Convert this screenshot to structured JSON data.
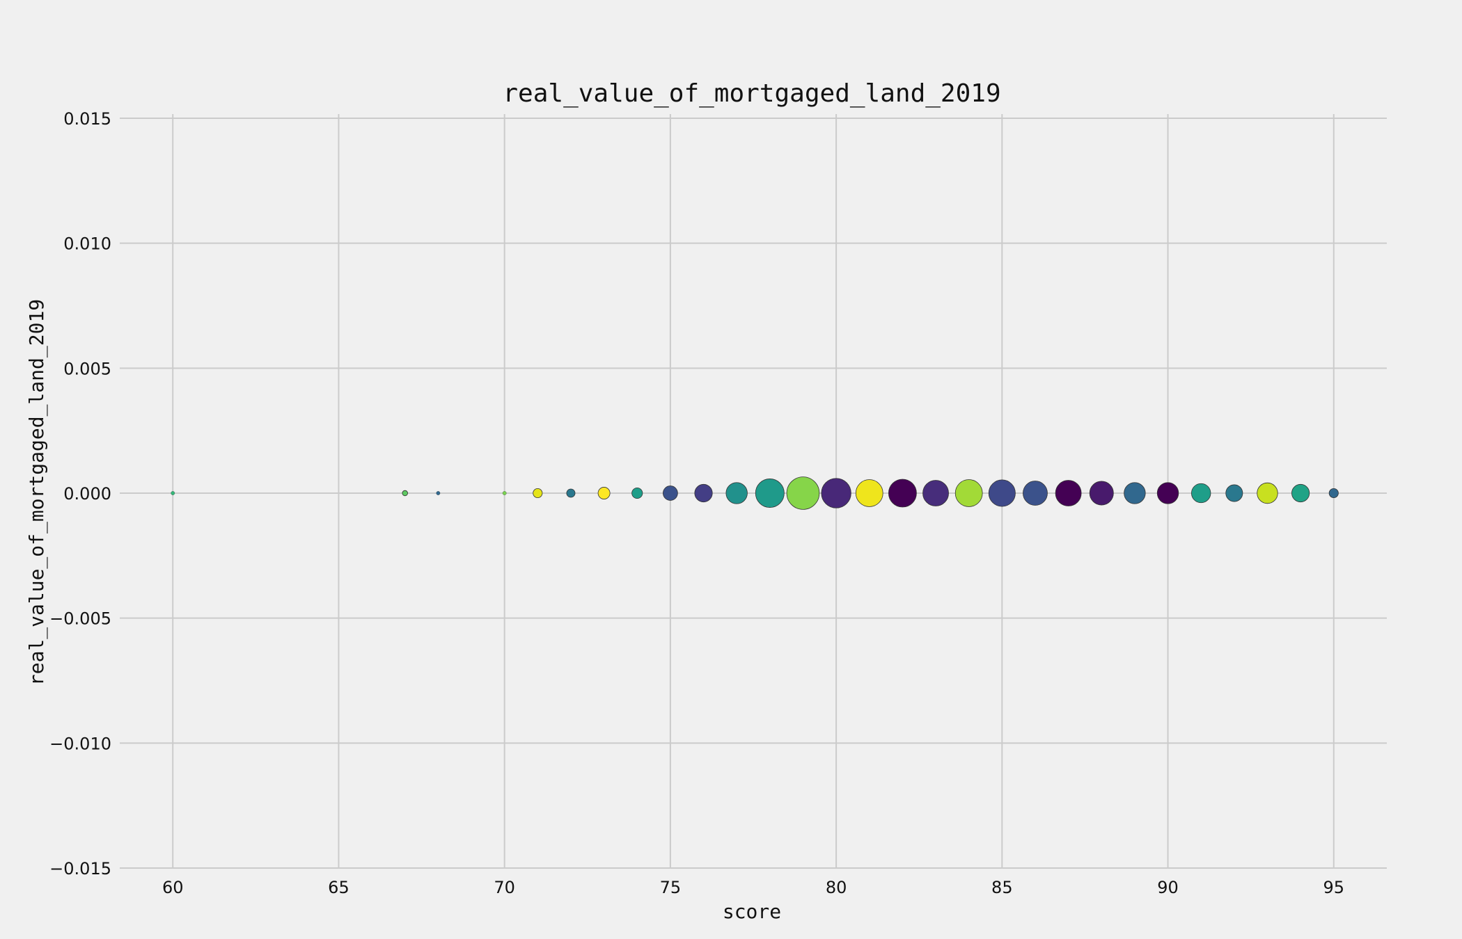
{
  "chart_data": {
    "type": "scatter",
    "title": "real_value_of_mortgaged_land_2019",
    "xlabel": "score",
    "ylabel": "real_value_of_mortgaged_land_2019",
    "xlim": [
      58.4,
      96.6
    ],
    "ylim": [
      -0.015,
      0.015
    ],
    "xticks": [
      60,
      65,
      70,
      75,
      80,
      85,
      90,
      95
    ],
    "yticks": [
      0.015,
      0.01,
      0.005,
      0.0,
      -0.005,
      -0.01,
      -0.015
    ],
    "ytick_labels": [
      "0.015",
      "0.010",
      "0.005",
      "0.000",
      "−0.005",
      "−0.010",
      "−0.015"
    ],
    "grid": true,
    "legend": "none",
    "marker_size_encodes": "count",
    "color_map": "viridis",
    "points": [
      {
        "x": 60,
        "y": 0,
        "size": 1,
        "color": "#35b779"
      },
      {
        "x": 67,
        "y": 0,
        "size": 2,
        "color": "#5ec962"
      },
      {
        "x": 68,
        "y": 0,
        "size": 1,
        "color": "#31688e"
      },
      {
        "x": 70,
        "y": 0,
        "size": 1,
        "color": "#7ad151"
      },
      {
        "x": 71,
        "y": 0,
        "size": 6,
        "color": "#e5e419"
      },
      {
        "x": 72,
        "y": 0,
        "size": 5,
        "color": "#2a788e"
      },
      {
        "x": 73,
        "y": 0,
        "size": 10,
        "color": "#fde725"
      },
      {
        "x": 74,
        "y": 0,
        "size": 8,
        "color": "#1f9e89"
      },
      {
        "x": 75,
        "y": 0,
        "size": 15,
        "color": "#3b528b"
      },
      {
        "x": 76,
        "y": 0,
        "size": 22,
        "color": "#433e85"
      },
      {
        "x": 77,
        "y": 0,
        "size": 32,
        "color": "#21918c"
      },
      {
        "x": 78,
        "y": 0,
        "size": 58,
        "color": "#1f9a8a"
      },
      {
        "x": 79,
        "y": 0,
        "size": 75,
        "color": "#86d549"
      },
      {
        "x": 80,
        "y": 0,
        "size": 62,
        "color": "#482878"
      },
      {
        "x": 81,
        "y": 0,
        "size": 52,
        "color": "#efe51c"
      },
      {
        "x": 82,
        "y": 0,
        "size": 55,
        "color": "#440154"
      },
      {
        "x": 83,
        "y": 0,
        "size": 47,
        "color": "#472d7b"
      },
      {
        "x": 84,
        "y": 0,
        "size": 52,
        "color": "#a2da37"
      },
      {
        "x": 85,
        "y": 0,
        "size": 50,
        "color": "#3e4989"
      },
      {
        "x": 86,
        "y": 0,
        "size": 42,
        "color": "#3b528b"
      },
      {
        "x": 87,
        "y": 0,
        "size": 47,
        "color": "#440154"
      },
      {
        "x": 88,
        "y": 0,
        "size": 40,
        "color": "#481a6c"
      },
      {
        "x": 89,
        "y": 0,
        "size": 32,
        "color": "#31688e"
      },
      {
        "x": 90,
        "y": 0,
        "size": 32,
        "color": "#440154"
      },
      {
        "x": 91,
        "y": 0,
        "size": 26,
        "color": "#1f9e89"
      },
      {
        "x": 92,
        "y": 0,
        "size": 20,
        "color": "#2a788e"
      },
      {
        "x": 93,
        "y": 0,
        "size": 30,
        "color": "#c8e020"
      },
      {
        "x": 94,
        "y": 0,
        "size": 22,
        "color": "#20a386"
      },
      {
        "x": 95,
        "y": 0,
        "size": 6,
        "color": "#31688e"
      }
    ]
  }
}
